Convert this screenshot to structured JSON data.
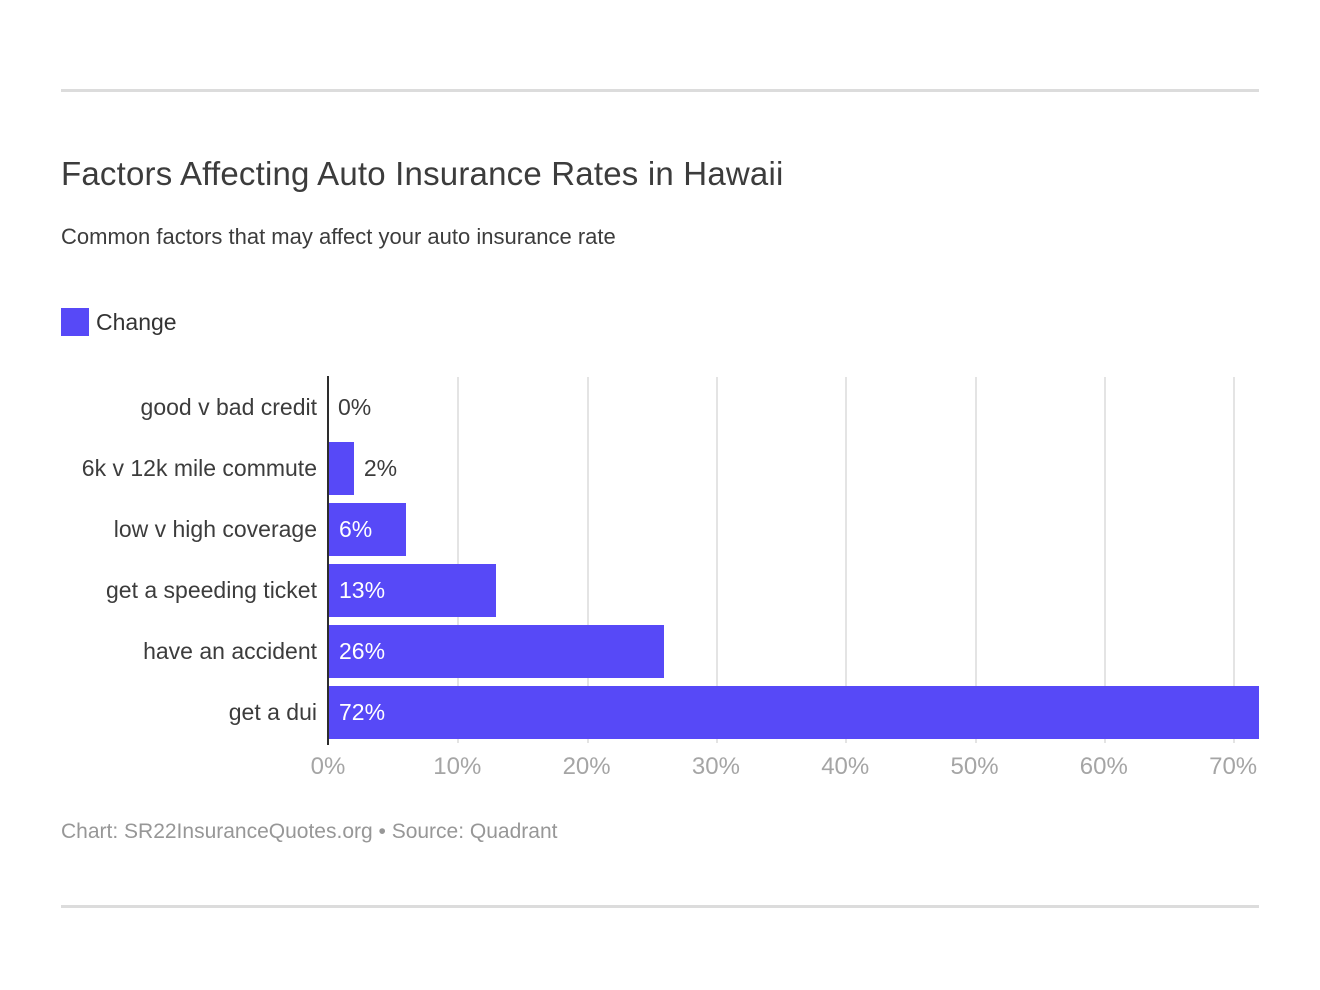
{
  "page": {
    "title": "Factors Affecting Auto Insurance Rates in Hawaii",
    "subtitle": "Common factors that may affect your auto insurance rate",
    "footer": "Chart: SR22InsuranceQuotes.org • Source: Quadrant"
  },
  "legend": {
    "label": "Change",
    "color": "#5749f7"
  },
  "chart_data": {
    "type": "bar",
    "orientation": "horizontal",
    "title": "Factors Affecting Auto Insurance Rates in Hawaii",
    "subtitle": "Common factors that may affect your auto insurance rate",
    "categories": [
      "good v bad credit",
      "6k v 12k mile commute",
      "low v high coverage",
      "get a speeding ticket",
      "have an accident",
      "get a dui"
    ],
    "values": [
      0,
      2,
      6,
      13,
      26,
      72
    ],
    "value_labels": [
      "0%",
      "2%",
      "6%",
      "13%",
      "26%",
      "72%"
    ],
    "series_name": "Change",
    "bar_color": "#5749f7",
    "x_tick_labels": [
      "0%",
      "10%",
      "20%",
      "30%",
      "40%",
      "50%",
      "60%",
      "70%"
    ],
    "x_tick_values": [
      0,
      10,
      20,
      30,
      40,
      50,
      60,
      70
    ],
    "xlim": [
      0,
      72
    ],
    "grid": true,
    "legend_position": "top-left",
    "inside_label_threshold": 6
  }
}
